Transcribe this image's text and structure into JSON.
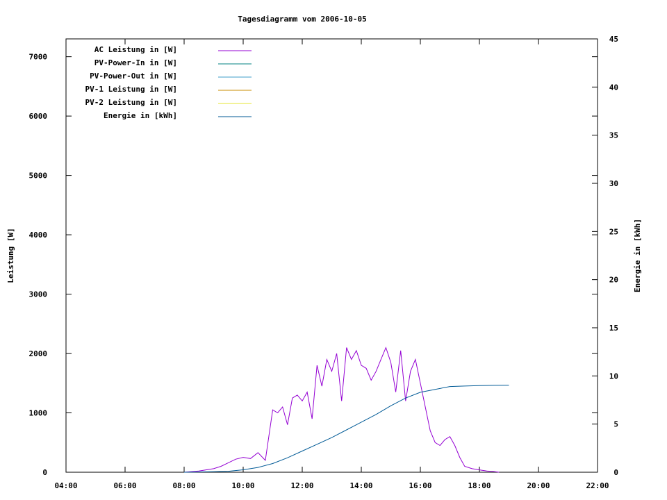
{
  "chart_data": {
    "type": "line",
    "title": "Tagesdiagramm vom 2006-10-05",
    "ylabel": "Leistung [W]",
    "y2label": "Energie in [kWh]",
    "xlim": [
      "04:00",
      "22:00"
    ],
    "ylim": [
      0,
      7300
    ],
    "y2lim": [
      0,
      45
    ],
    "x_ticks": [
      "04:00",
      "06:00",
      "08:00",
      "10:00",
      "12:00",
      "14:00",
      "16:00",
      "18:00",
      "20:00",
      "22:00"
    ],
    "y_ticks": [
      "0",
      "1000",
      "2000",
      "3000",
      "4000",
      "5000",
      "6000",
      "7000"
    ],
    "y2_ticks": [
      "0",
      "5",
      "10",
      "15",
      "20",
      "25",
      "30",
      "35",
      "40",
      "45"
    ],
    "grid": false,
    "legend_position": "top-left",
    "series": [
      {
        "name": "AC Leistung in [W]",
        "color": "#9400d3",
        "axis": "left",
        "x": [
          "08:00",
          "08:30",
          "09:00",
          "09:15",
          "09:30",
          "09:45",
          "10:00",
          "10:15",
          "10:30",
          "10:45",
          "11:00",
          "11:10",
          "11:20",
          "11:30",
          "11:40",
          "11:50",
          "12:00",
          "12:10",
          "12:20",
          "12:30",
          "12:40",
          "12:50",
          "13:00",
          "13:10",
          "13:20",
          "13:30",
          "13:40",
          "13:50",
          "14:00",
          "14:10",
          "14:20",
          "14:30",
          "14:40",
          "14:50",
          "15:00",
          "15:10",
          "15:20",
          "15:30",
          "15:40",
          "15:50",
          "16:00",
          "16:10",
          "16:20",
          "16:30",
          "16:40",
          "16:50",
          "17:00",
          "17:10",
          "17:20",
          "17:30",
          "17:45",
          "18:00",
          "18:15",
          "18:30",
          "18:40"
        ],
        "values": [
          0,
          20,
          60,
          100,
          160,
          220,
          250,
          230,
          330,
          200,
          1050,
          1000,
          1100,
          800,
          1250,
          1300,
          1200,
          1350,
          900,
          1800,
          1450,
          1900,
          1700,
          2000,
          1200,
          2100,
          1900,
          2050,
          1800,
          1750,
          1550,
          1700,
          1900,
          2100,
          1850,
          1350,
          2050,
          1200,
          1700,
          1900,
          1500,
          1100,
          700,
          500,
          450,
          550,
          600,
          450,
          250,
          100,
          60,
          40,
          20,
          10,
          0
        ]
      },
      {
        "name": "PV-Power-In in [W]",
        "color": "#008080",
        "axis": "left",
        "x": [],
        "values": []
      },
      {
        "name": "PV-Power-Out in [W]",
        "color": "#3c9ec8",
        "axis": "left",
        "x": [],
        "values": []
      },
      {
        "name": "PV-1 Leistung in [W]",
        "color": "#c88c00",
        "axis": "left",
        "x": [],
        "values": []
      },
      {
        "name": "PV-2 Leistung in [W]",
        "color": "#e6e632",
        "axis": "left",
        "x": [],
        "values": []
      },
      {
        "name": "Energie in [kWh]",
        "color": "#005a96",
        "axis": "right",
        "x": [
          "08:00",
          "09:00",
          "09:30",
          "10:00",
          "10:30",
          "11:00",
          "11:30",
          "12:00",
          "12:30",
          "13:00",
          "13:30",
          "14:00",
          "14:30",
          "15:00",
          "15:30",
          "16:00",
          "16:30",
          "17:00",
          "17:30",
          "18:00",
          "18:30",
          "19:00"
        ],
        "values": [
          0,
          0.05,
          0.1,
          0.25,
          0.5,
          0.9,
          1.5,
          2.2,
          2.9,
          3.6,
          4.4,
          5.2,
          6.0,
          6.9,
          7.7,
          8.3,
          8.6,
          8.9,
          8.95,
          9.0,
          9.02,
          9.03
        ]
      }
    ]
  }
}
